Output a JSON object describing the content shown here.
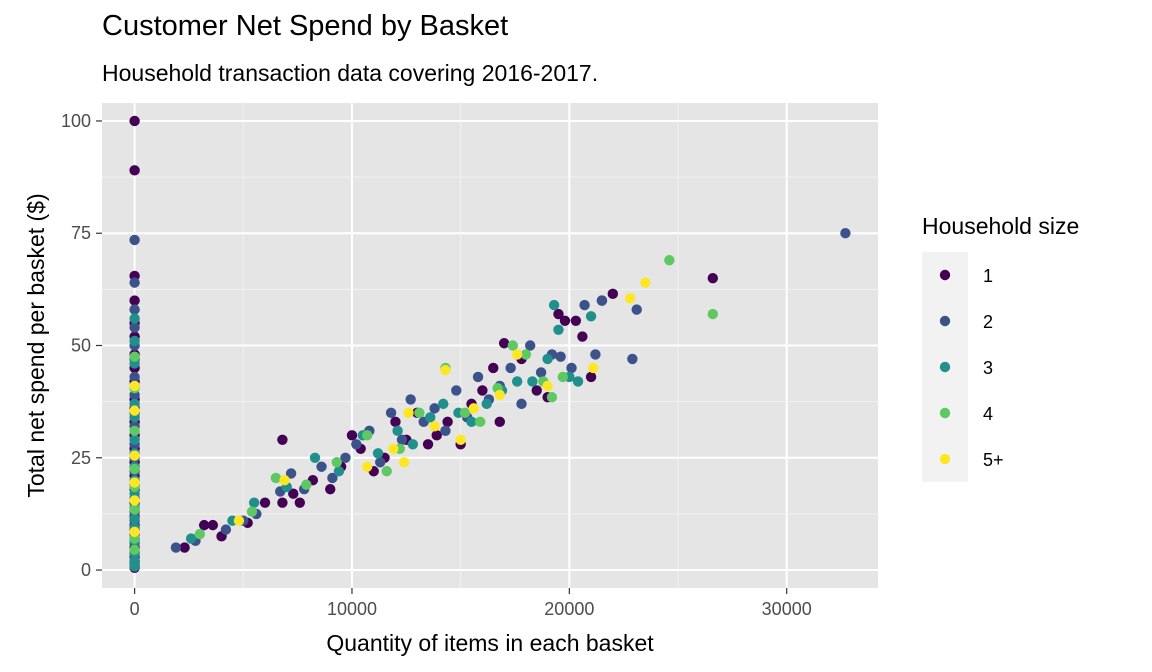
{
  "chart_data": {
    "type": "scatter",
    "title": "Customer Net Spend by Basket",
    "subtitle": "Household transaction data covering 2016-2017.",
    "xlabel": "Quantity of items in each basket",
    "ylabel": "Total net spend per basket ($)",
    "xlim": [
      -1500,
      34200
    ],
    "ylim": [
      -4,
      104
    ],
    "x_ticks": [
      0,
      10000,
      20000,
      30000
    ],
    "x_tick_labels": [
      "0",
      "10000",
      "20000",
      "30000"
    ],
    "y_ticks": [
      0,
      25,
      50,
      75,
      100
    ],
    "y_tick_labels": [
      "0",
      "25",
      "50",
      "75",
      "100"
    ],
    "grid": true,
    "legend": {
      "title": "Household size",
      "placement": "right"
    },
    "series": [
      {
        "name": "1",
        "color": "#440154",
        "points": [
          [
            0,
            100
          ],
          [
            0,
            89
          ],
          [
            0,
            65.5
          ],
          [
            0,
            60
          ],
          [
            0,
            55
          ],
          [
            0,
            52
          ],
          [
            0,
            48
          ],
          [
            0,
            45
          ],
          [
            0,
            42
          ],
          [
            0,
            38
          ],
          [
            0,
            36
          ],
          [
            0,
            33
          ],
          [
            0,
            30
          ],
          [
            0,
            27
          ],
          [
            0,
            24
          ],
          [
            0,
            21
          ],
          [
            0,
            18
          ],
          [
            0,
            15
          ],
          [
            0,
            12
          ],
          [
            0,
            10
          ],
          [
            0,
            9
          ],
          [
            0,
            7
          ],
          [
            0,
            5
          ],
          [
            0,
            3
          ],
          [
            0,
            2
          ],
          [
            0,
            1
          ],
          [
            0,
            0.5
          ],
          [
            2300,
            5
          ],
          [
            3200,
            10
          ],
          [
            3600,
            10
          ],
          [
            4000,
            7.5
          ],
          [
            5200,
            10.5
          ],
          [
            6000,
            15
          ],
          [
            6800,
            29
          ],
          [
            6800,
            15
          ],
          [
            7300,
            17
          ],
          [
            7600,
            15
          ],
          [
            8200,
            20
          ],
          [
            9000,
            18
          ],
          [
            9500,
            23
          ],
          [
            10000,
            30
          ],
          [
            10400,
            27
          ],
          [
            11000,
            22
          ],
          [
            11500,
            25
          ],
          [
            12000,
            33
          ],
          [
            12500,
            29
          ],
          [
            13000,
            35
          ],
          [
            13500,
            28
          ],
          [
            13900,
            30
          ],
          [
            14400,
            33
          ],
          [
            15000,
            28
          ],
          [
            15500,
            37
          ],
          [
            16000,
            40
          ],
          [
            16500,
            45
          ],
          [
            16800,
            33
          ],
          [
            17000,
            50.5
          ],
          [
            17800,
            47
          ],
          [
            18500,
            40
          ],
          [
            19000,
            38.5
          ],
          [
            19500,
            57
          ],
          [
            19800,
            55.5
          ],
          [
            20300,
            55.5
          ],
          [
            20600,
            52
          ],
          [
            21000,
            43
          ],
          [
            21500,
            60
          ],
          [
            22000,
            61.5
          ],
          [
            26600,
            65
          ]
        ]
      },
      {
        "name": "2",
        "color": "#3b528b",
        "points": [
          [
            0,
            73.5
          ],
          [
            0,
            64
          ],
          [
            0,
            58
          ],
          [
            0,
            54
          ],
          [
            0,
            50
          ],
          [
            0,
            47
          ],
          [
            0,
            43
          ],
          [
            0,
            39
          ],
          [
            0,
            35
          ],
          [
            0,
            32
          ],
          [
            0,
            28
          ],
          [
            0,
            25
          ],
          [
            0,
            22
          ],
          [
            0,
            19
          ],
          [
            0,
            16
          ],
          [
            0,
            13
          ],
          [
            0,
            11
          ],
          [
            0,
            8
          ],
          [
            0,
            6
          ],
          [
            0,
            4
          ],
          [
            0,
            1.5
          ],
          [
            1900,
            5
          ],
          [
            2800,
            6.5
          ],
          [
            4200,
            9
          ],
          [
            5000,
            11
          ],
          [
            5600,
            12.5
          ],
          [
            6700,
            17.5
          ],
          [
            7200,
            21.5
          ],
          [
            7800,
            18
          ],
          [
            8600,
            23
          ],
          [
            9100,
            20.5
          ],
          [
            9700,
            25
          ],
          [
            10200,
            28
          ],
          [
            10800,
            31
          ],
          [
            11300,
            24
          ],
          [
            11800,
            35
          ],
          [
            12300,
            29
          ],
          [
            12700,
            38
          ],
          [
            13300,
            33
          ],
          [
            13800,
            36
          ],
          [
            14300,
            31
          ],
          [
            14800,
            40
          ],
          [
            15300,
            34
          ],
          [
            15800,
            43
          ],
          [
            16300,
            38
          ],
          [
            16800,
            41
          ],
          [
            17300,
            45
          ],
          [
            17800,
            37
          ],
          [
            18200,
            50
          ],
          [
            18700,
            44
          ],
          [
            19200,
            48
          ],
          [
            19600,
            47.5
          ],
          [
            20100,
            45
          ],
          [
            20700,
            59
          ],
          [
            21200,
            48
          ],
          [
            21500,
            60
          ],
          [
            22900,
            47
          ],
          [
            23100,
            58
          ],
          [
            32700,
            75
          ]
        ]
      },
      {
        "name": "3",
        "color": "#21908c",
        "points": [
          [
            0,
            56
          ],
          [
            0,
            51
          ],
          [
            0,
            46
          ],
          [
            0,
            41
          ],
          [
            0,
            37
          ],
          [
            0,
            34
          ],
          [
            0,
            29
          ],
          [
            0,
            26
          ],
          [
            0,
            23
          ],
          [
            0,
            20
          ],
          [
            0,
            17
          ],
          [
            0,
            14
          ],
          [
            0,
            11.5
          ],
          [
            0,
            9.5
          ],
          [
            0,
            6.5
          ],
          [
            0,
            3.5
          ],
          [
            0,
            2
          ],
          [
            0,
            0.8
          ],
          [
            2600,
            7
          ],
          [
            4500,
            11
          ],
          [
            5500,
            15
          ],
          [
            7000,
            18.5
          ],
          [
            8300,
            25
          ],
          [
            9400,
            22
          ],
          [
            10500,
            30
          ],
          [
            11200,
            26
          ],
          [
            12100,
            31
          ],
          [
            12800,
            28
          ],
          [
            13600,
            34
          ],
          [
            14200,
            37
          ],
          [
            14900,
            35
          ],
          [
            15500,
            33
          ],
          [
            16200,
            37
          ],
          [
            16900,
            40
          ],
          [
            17600,
            42
          ],
          [
            18300,
            42
          ],
          [
            19000,
            47
          ],
          [
            19300,
            59
          ],
          [
            19500,
            53.5
          ],
          [
            20000,
            43
          ],
          [
            20400,
            42
          ],
          [
            21000,
            56.5
          ]
        ]
      },
      {
        "name": "4",
        "color": "#5ec962",
        "points": [
          [
            0,
            47.5
          ],
          [
            0,
            40.5
          ],
          [
            0,
            31
          ],
          [
            0,
            22.5
          ],
          [
            0,
            18.5
          ],
          [
            0,
            13.5
          ],
          [
            0,
            7
          ],
          [
            0,
            4.5
          ],
          [
            3000,
            8
          ],
          [
            5400,
            13
          ],
          [
            6500,
            20.5
          ],
          [
            7900,
            19
          ],
          [
            9300,
            24
          ],
          [
            10700,
            30
          ],
          [
            11600,
            22
          ],
          [
            12200,
            27
          ],
          [
            13100,
            35
          ],
          [
            14300,
            45
          ],
          [
            15200,
            35
          ],
          [
            15900,
            33
          ],
          [
            16700,
            40.5
          ],
          [
            17400,
            50
          ],
          [
            18000,
            48
          ],
          [
            18800,
            42
          ],
          [
            19200,
            38.5
          ],
          [
            19700,
            43
          ],
          [
            24600,
            69
          ],
          [
            26600,
            57
          ]
        ]
      },
      {
        "name": "5+",
        "color": "#fde725",
        "points": [
          [
            0,
            41
          ],
          [
            0,
            35.5
          ],
          [
            0,
            25.5
          ],
          [
            0,
            19.5
          ],
          [
            0,
            15.5
          ],
          [
            0,
            8.5
          ],
          [
            4800,
            11
          ],
          [
            6900,
            20
          ],
          [
            10700,
            23
          ],
          [
            11900,
            27
          ],
          [
            12400,
            24
          ],
          [
            12600,
            35
          ],
          [
            13800,
            32
          ],
          [
            14300,
            44.5
          ],
          [
            15000,
            29
          ],
          [
            15600,
            36
          ],
          [
            16800,
            39
          ],
          [
            17600,
            48
          ],
          [
            19000,
            41
          ],
          [
            21100,
            45
          ],
          [
            22800,
            60.5
          ],
          [
            23500,
            64
          ]
        ]
      }
    ]
  }
}
